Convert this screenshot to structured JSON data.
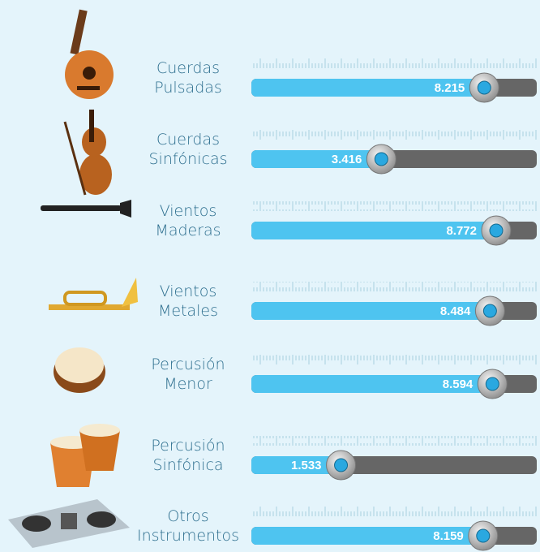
{
  "chart_data": {
    "type": "slider",
    "categories": [
      [
        "Cuerdas",
        "Pulsadas"
      ],
      [
        "Cuerdas",
        "Sinfónicas"
      ],
      [
        "Vientos",
        "Maderas"
      ],
      [
        "Vientos",
        "Metales"
      ],
      [
        "Percusión",
        "Menor"
      ],
      [
        "Percusión",
        "Sinfónica"
      ],
      [
        "Otros",
        "Instrumentos"
      ]
    ],
    "values": [
      8.215,
      3.416,
      8.772,
      8.484,
      8.594,
      1.533,
      8.159
    ],
    "color": "#4ec4f0"
  }
}
